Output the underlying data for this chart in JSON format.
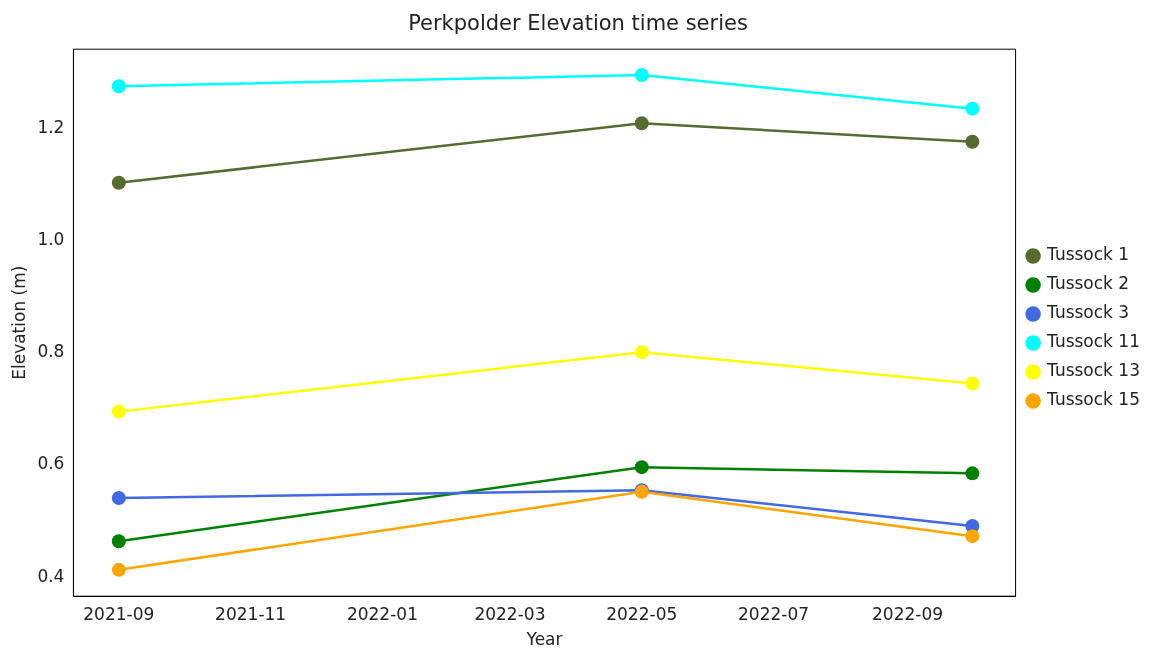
{
  "chart_data": {
    "type": "line",
    "title": "Perkpolder Elevation time series",
    "xlabel": "Year",
    "ylabel": "Elevation (m)",
    "x": [
      "2021-09-01",
      "2022-05-01",
      "2022-10-01"
    ],
    "series": [
      {
        "name": "Tussock 1",
        "color": "#556b2f",
        "values": [
          1.103,
          1.209,
          1.176
        ]
      },
      {
        "name": "Tussock 2",
        "color": "#008000",
        "values": [
          0.464,
          0.596,
          0.585
        ]
      },
      {
        "name": "Tussock 3",
        "color": "#4169e1",
        "values": [
          0.541,
          0.555,
          0.491
        ]
      },
      {
        "name": "Tussock 11",
        "color": "#00ffff",
        "values": [
          1.275,
          1.295,
          1.235
        ]
      },
      {
        "name": "Tussock 13",
        "color": "#ffff00",
        "values": [
          0.695,
          0.801,
          0.745
        ]
      },
      {
        "name": "Tussock 15",
        "color": "#ffa500",
        "values": [
          0.413,
          0.552,
          0.473
        ]
      }
    ],
    "xlim": [
      "2021-08-11",
      "2022-10-21"
    ],
    "xticks": [
      {
        "value": "2021-09-01",
        "label": "2021-09"
      },
      {
        "value": "2021-11-01",
        "label": "2021-11"
      },
      {
        "value": "2022-01-01",
        "label": "2022-01"
      },
      {
        "value": "2022-03-01",
        "label": "2022-03"
      },
      {
        "value": "2022-05-01",
        "label": "2022-05"
      },
      {
        "value": "2022-07-01",
        "label": "2022-07"
      },
      {
        "value": "2022-09-01",
        "label": "2022-09"
      }
    ],
    "ylim": [
      0.366,
      1.341
    ],
    "yticks": [
      0.4,
      0.6,
      {
        "value": 1,
        "label": "1.0"
      },
      0.8,
      1.2
    ],
    "grid": false,
    "legend": "right",
    "marker": "circle",
    "line_style": "solid"
  }
}
